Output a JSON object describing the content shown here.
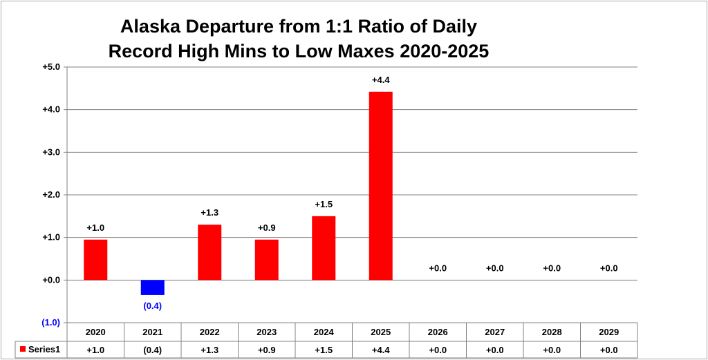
{
  "chart_data": {
    "type": "bar",
    "title_line1": "Alaska Departure from 1:1 Ratio of Daily",
    "title_line2": "Record High Mins to Low Maxes 2020-2025",
    "categories": [
      "2020",
      "2021",
      "2022",
      "2023",
      "2024",
      "2025",
      "2026",
      "2027",
      "2028",
      "2029"
    ],
    "series": [
      {
        "name": "Series1",
        "values": [
          0.95,
          -0.35,
          1.3,
          0.95,
          1.5,
          4.42,
          0.0,
          0.0,
          0.0,
          0.0
        ],
        "labels": [
          "+1.0",
          "(0.4)",
          "+1.3",
          "+0.9",
          "+1.5",
          "+4.4",
          "+0.0",
          "+0.0",
          "+0.0",
          "+0.0"
        ]
      }
    ],
    "ylim": [
      -1.0,
      5.0
    ],
    "yticks": [
      -1.0,
      0.0,
      1.0,
      2.0,
      3.0,
      4.0,
      5.0
    ],
    "ytick_labels": [
      "(1.0)",
      "+0.0",
      "+1.0",
      "+2.0",
      "+3.0",
      "+4.0",
      "+5.0"
    ],
    "grid": true,
    "legend": "data-table",
    "colors": {
      "positive": "#ff0000",
      "negative": "#0000ff",
      "negative_text": "#0000ff",
      "text": "#000000",
      "grid": "#808080"
    }
  }
}
